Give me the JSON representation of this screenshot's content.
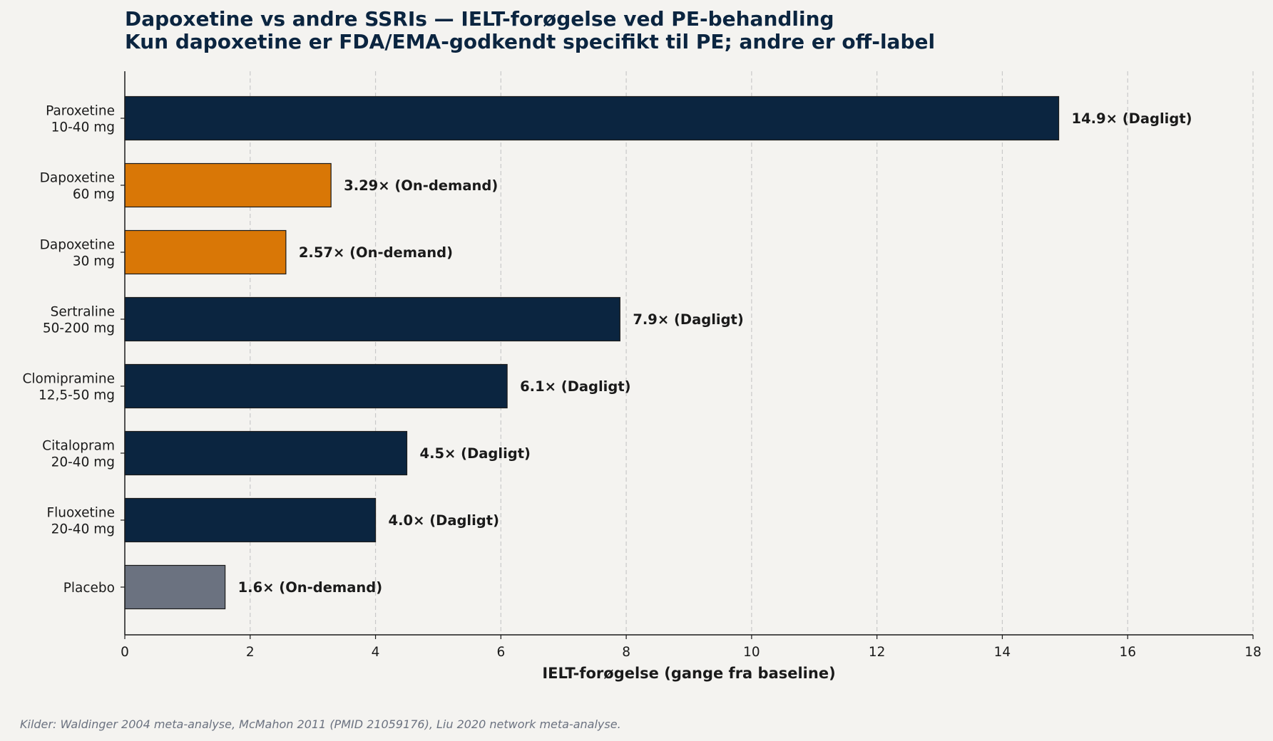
{
  "chart_data": {
    "type": "bar",
    "orientation": "horizontal",
    "title": "Dapoxetine vs andre SSRIs — IELT-forøgelse ved PE-behandling",
    "subtitle": "Kun dapoxetine er FDA/EMA-godkendt specifikt til PE; andre er off-label",
    "xlabel": "IELT-forøgelse (gange fra baseline)",
    "ylabel": "",
    "xlim": [
      0,
      18
    ],
    "xticks": [
      0,
      2,
      4,
      6,
      8,
      10,
      12,
      14,
      16,
      18
    ],
    "grid": "vertical dashed",
    "categories": [
      [
        "Paroxetine",
        "10-40 mg"
      ],
      [
        "Dapoxetine",
        "60 mg"
      ],
      [
        "Dapoxetine",
        "30 mg"
      ],
      [
        "Sertraline",
        "50-200 mg"
      ],
      [
        "Clomipramine",
        "12,5-50 mg"
      ],
      [
        "Citalopram",
        "20-40 mg"
      ],
      [
        "Fluoxetine",
        "20-40 mg"
      ],
      [
        "Placebo"
      ]
    ],
    "values": [
      14.9,
      3.29,
      2.57,
      7.9,
      6.1,
      4.5,
      4.0,
      1.6
    ],
    "value_labels": [
      "14.9× (Dagligt)",
      "3.29× (On-demand)",
      "2.57× (On-demand)",
      "7.9× (Dagligt)",
      "6.1× (Dagligt)",
      "4.5× (Dagligt)",
      "4.0× (Dagligt)",
      "1.6× (On-demand)"
    ],
    "colors": [
      "#0b2540",
      "#d97706",
      "#d97706",
      "#0b2540",
      "#0b2540",
      "#0b2540",
      "#0b2540",
      "#6b7280"
    ]
  },
  "source_note": "Kilder: Waldinger 2004 meta-analyse, McMahon 2011 (PMID 21059176), Liu 2020 network meta-analyse.",
  "colors": {
    "background": "#f4f3f0",
    "daily": "#0b2540",
    "on_demand": "#d97706",
    "placebo": "#6b7280",
    "title": "#0b2540"
  }
}
